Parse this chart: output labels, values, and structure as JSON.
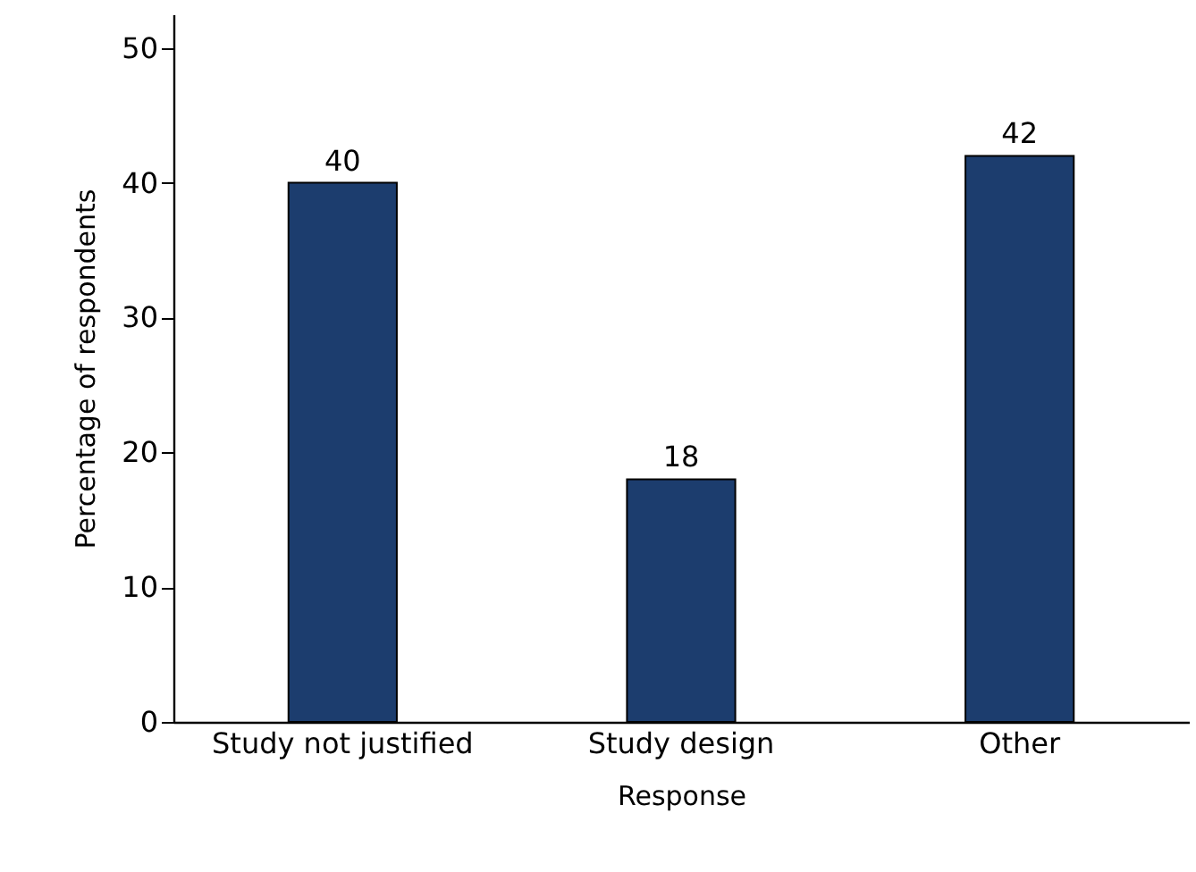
{
  "chart_data": {
    "type": "bar",
    "xlabel": "Response",
    "ylabel": "Percentage of respondents",
    "categories": [
      "Study not justified",
      "Study design",
      "Other"
    ],
    "values": [
      40,
      18,
      42
    ],
    "color": "#1c3d6e",
    "ylim": [
      0,
      52.5
    ],
    "yticks": [
      0,
      10,
      20,
      30,
      40,
      50
    ],
    "grid": false,
    "data_labels": true
  }
}
